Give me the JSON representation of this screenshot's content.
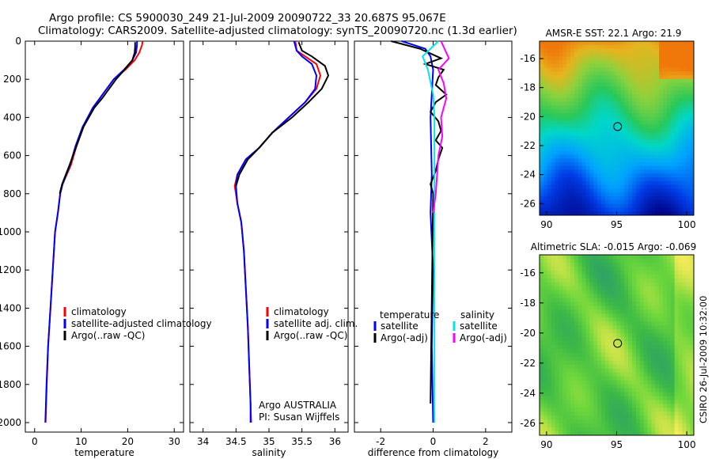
{
  "title": {
    "line1": "Argo profile: CS 5900030_249 21-Jul-2009 20090722_33 20.687S 95.067E",
    "line2": "Climatology: CARS2009. Satellite-adjusted climatology: synTS_20090720.nc (1.3d earlier)"
  },
  "side_label": "CSIRO 26-Jul-2009 10:32:00",
  "colors": {
    "climatology": "#ff0000",
    "satellite": "#0000ff",
    "argo": "#000000",
    "sal_satellite": "#00e5e5",
    "sal_argo": "#ff00ff"
  },
  "chart_data": [
    {
      "type": "line",
      "xlabel": "temperature",
      "ylabel": "",
      "xlim": [
        -2,
        32
      ],
      "ylim": [
        2050,
        0
      ],
      "xticks": [
        0,
        10,
        20,
        30
      ],
      "yticks": [
        0,
        200,
        400,
        600,
        800,
        1000,
        1200,
        1400,
        1600,
        1800,
        2000
      ],
      "legend": {
        "position": "bottom-right",
        "entries": [
          "climatology",
          "satellite-adjusted climatology",
          "Argo(..raw -QC)"
        ]
      },
      "series": [
        {
          "name": "climatology",
          "color": "#ff0000",
          "x": [
            23.2,
            23.1,
            22.5,
            21.5,
            19.5,
            17,
            14,
            12.5,
            10.5,
            9,
            7.8,
            6,
            5.5,
            5,
            4.4,
            3.9,
            3.4,
            2.9,
            2.6,
            2.35
          ],
          "y": [
            0,
            20,
            60,
            100,
            150,
            200,
            300,
            350,
            450,
            550,
            650,
            750,
            800,
            900,
            1000,
            1200,
            1400,
            1600,
            1800,
            2000
          ]
        },
        {
          "name": "satellite-adjusted climatology",
          "color": "#0000ff",
          "x": [
            22,
            22,
            21.8,
            21,
            19.2,
            17,
            14,
            12.5,
            10.3,
            8.8,
            7.6,
            6,
            5.5,
            5,
            4.4,
            3.9,
            3.4,
            2.9,
            2.55,
            2.3
          ],
          "y": [
            0,
            20,
            60,
            100,
            150,
            200,
            300,
            350,
            450,
            550,
            650,
            750,
            800,
            900,
            1000,
            1200,
            1400,
            1600,
            1800,
            2000
          ]
        },
        {
          "name": "Argo(..raw -QC)",
          "color": "#000000",
          "x": [
            21.6,
            21.6,
            21.5,
            21,
            19.3,
            17.5,
            14.5,
            12.8,
            10.5,
            9,
            7.5,
            5.9,
            5.4
          ],
          "y": [
            5,
            30,
            60,
            100,
            150,
            200,
            300,
            350,
            450,
            550,
            650,
            750,
            800
          ]
        }
      ]
    },
    {
      "type": "line",
      "xlabel": "salinity",
      "ylabel": "",
      "xlim": [
        33.8,
        36.2
      ],
      "ylim": [
        2050,
        0
      ],
      "xticks": [
        34,
        34.5,
        35,
        35.5,
        36
      ],
      "legend": {
        "position": "bottom-right",
        "entries": [
          "climatology",
          "satellite adj. clim.",
          "Argo(..raw -QC)"
        ]
      },
      "annotations": [
        "Argo AUSTRALIA",
        "PI: Susan Wijffels"
      ],
      "series": [
        {
          "name": "climatology",
          "color": "#ff0000",
          "x": [
            35.4,
            35.42,
            35.55,
            35.72,
            35.78,
            35.72,
            35.55,
            35.3,
            35.05,
            34.85,
            34.65,
            34.52,
            34.48,
            34.52,
            34.58,
            34.62,
            34.65,
            34.68,
            34.7,
            34.72,
            34.73
          ],
          "y": [
            0,
            50,
            80,
            120,
            180,
            250,
            320,
            400,
            480,
            560,
            620,
            700,
            760,
            850,
            950,
            1100,
            1300,
            1500,
            1700,
            1900,
            2000
          ]
        },
        {
          "name": "satellite adj. clim.",
          "color": "#0000ff",
          "x": [
            35.38,
            35.42,
            35.5,
            35.65,
            35.72,
            35.7,
            35.55,
            35.3,
            35.05,
            34.85,
            34.65,
            34.52,
            34.5,
            34.52,
            34.58,
            34.62,
            34.65,
            34.68,
            34.7,
            34.72,
            34.72
          ],
          "y": [
            0,
            50,
            80,
            120,
            180,
            250,
            320,
            400,
            480,
            560,
            620,
            700,
            760,
            850,
            950,
            1100,
            1300,
            1500,
            1700,
            1900,
            2000
          ]
        },
        {
          "name": "Argo(..raw -QC)",
          "color": "#000000",
          "x": [
            35.45,
            35.5,
            35.65,
            35.85,
            35.9,
            35.8,
            35.6,
            35.35,
            35.05,
            34.85,
            34.68,
            34.55,
            34.5
          ],
          "y": [
            5,
            50,
            80,
            130,
            180,
            250,
            320,
            400,
            480,
            560,
            620,
            700,
            760
          ]
        }
      ]
    },
    {
      "type": "line",
      "xlabel": "difference from climatology",
      "ylabel": "",
      "xlim": [
        -3,
        3
      ],
      "ylim": [
        2050,
        0
      ],
      "xticks": [
        -2,
        0,
        2
      ],
      "legend": {
        "position": "bottom",
        "entries": [
          "temperature",
          "satellite",
          "Argo(-adj)",
          "salinity",
          "satellite",
          "Argo(-adj)"
        ]
      },
      "series": [
        {
          "name": "temperature satellite",
          "color": "#0000ff",
          "x": [
            -1.2,
            -0.3,
            -0.1,
            0,
            -0.1,
            -0.05,
            -0.1,
            0,
            -0.05,
            0
          ],
          "y": [
            0,
            40,
            80,
            150,
            400,
            700,
            900,
            1200,
            1600,
            2000
          ]
        },
        {
          "name": "temperature Argo(-adj)",
          "color": "#000000",
          "x": [
            -1.6,
            -0.5,
            0.3,
            -0.3,
            0.4,
            0.2,
            0.1,
            0.5,
            0.1,
            -0.1,
            0.2,
            0.3,
            0.1,
            0.35,
            0.2,
            0.1,
            -0.1,
            0,
            -0.1
          ],
          "y": [
            0,
            40,
            90,
            120,
            150,
            190,
            230,
            280,
            320,
            370,
            420,
            470,
            520,
            560,
            620,
            680,
            750,
            800,
            1900
          ]
        },
        {
          "name": "salinity satellite",
          "color": "#00e5e5",
          "x": [
            0.2,
            -0.4,
            -0.2,
            0,
            0.05,
            0.05,
            0.05,
            0.05
          ],
          "y": [
            0,
            80,
            150,
            280,
            400,
            700,
            1200,
            2000
          ]
        },
        {
          "name": "salinity Argo(-adj)",
          "color": "#ff00ff",
          "x": [
            0.3,
            0.6,
            0.2,
            0.4,
            0.5,
            0.3,
            0.35,
            0.2,
            0.15,
            0.1,
            0
          ],
          "y": [
            0,
            90,
            150,
            220,
            300,
            400,
            500,
            600,
            700,
            800,
            900
          ]
        }
      ]
    },
    {
      "type": "heatmap",
      "title": "AMSR-E SST: 22.1 Argo: 21.9",
      "xlim": [
        89.5,
        100.5
      ],
      "ylim": [
        -26.8,
        -14.8
      ],
      "xticks": [
        90,
        95,
        100
      ],
      "yticks": [
        -16,
        -18,
        -20,
        -22,
        -24,
        -26
      ],
      "marker": {
        "x": 95.067,
        "y": -20.687
      }
    },
    {
      "type": "heatmap",
      "title": "Altimetric SLA: -0.015 Argo: -0.069",
      "xlim": [
        89.5,
        100.5
      ],
      "ylim": [
        -26.8,
        -14.8
      ],
      "xticks": [
        90,
        95,
        100
      ],
      "yticks": [
        -16,
        -18,
        -20,
        -22,
        -24,
        -26
      ],
      "marker": {
        "x": 95.067,
        "y": -20.687
      }
    }
  ]
}
